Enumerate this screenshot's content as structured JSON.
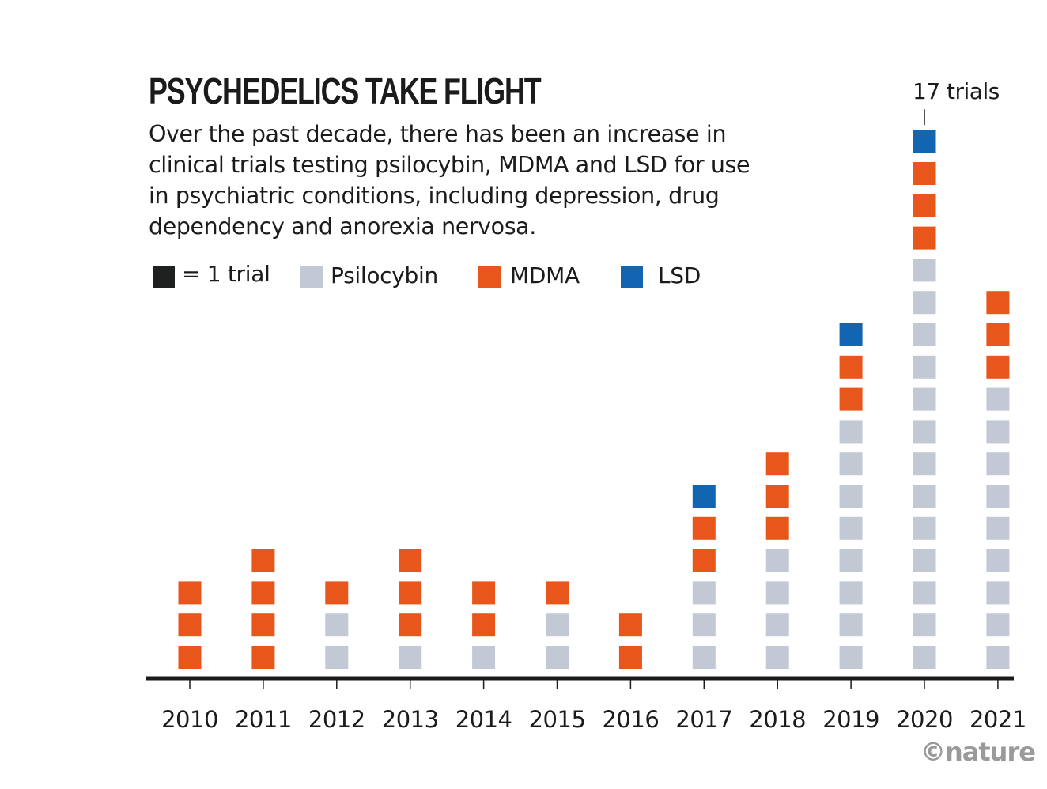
{
  "chart_data": {
    "type": "bar",
    "title": "PSYCHEDELICS TAKE FLIGHT",
    "subtitle": "Over the past decade, there has been an increase in clinical trials testing psilocybin, MDMA and LSD for use in psychiatric conditions, including depression, drug dependency and anorexia nervosa.",
    "stacked": true,
    "unit_legend": "= 1 trial",
    "categories": [
      "2010",
      "2011",
      "2012",
      "2013",
      "2014",
      "2015",
      "2016",
      "2017",
      "2018",
      "2019",
      "2020",
      "2021"
    ],
    "series": [
      {
        "name": "Psilocybin",
        "color": "#c2c8d4",
        "values": [
          0,
          0,
          2,
          1,
          1,
          2,
          0,
          3,
          4,
          8,
          13,
          9
        ]
      },
      {
        "name": "MDMA",
        "color": "#e8561b",
        "values": [
          3,
          4,
          1,
          3,
          2,
          1,
          2,
          2,
          3,
          2,
          3,
          3
        ]
      },
      {
        "name": "LSD",
        "color": "#1265b0",
        "values": [
          0,
          0,
          0,
          0,
          0,
          0,
          0,
          1,
          0,
          1,
          1,
          0
        ]
      }
    ],
    "unit_color": "#1e211f",
    "annotations": [
      {
        "category": "2020",
        "text": "17 trials"
      }
    ],
    "ylim": [
      0,
      17
    ],
    "xlabel": "",
    "ylabel": "",
    "grid": false
  },
  "credit": "©nature"
}
